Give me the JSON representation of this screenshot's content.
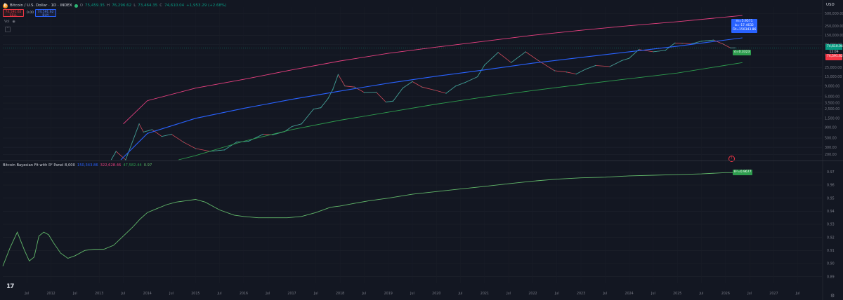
{
  "header": {
    "icon": "bitcoin-icon",
    "title": "Bitcoin / U.S. Dollar · 1D · INDEX",
    "o_label": "O",
    "o_value": "75,459.35",
    "h_label": "H",
    "h_value": "76,296.62",
    "l_label": "L",
    "l_value": "73,464.35",
    "c_label": "C",
    "c_value": "74,610.04",
    "change": "+1,953.29 (+2.68%)"
  },
  "trade": {
    "sell_price": "74,591.62",
    "sell_label": "SELL",
    "spread": "0.00",
    "buy_price": "74,591.62",
    "buy_label": "BUY"
  },
  "vol_label": "Vol",
  "vol_icon": "eye-icon",
  "currency": "USD",
  "indicator": {
    "name": "Bitcoin Bayesian Fit with R² Panel 8,000",
    "v1": "150,343.86",
    "v2": "322,628.46",
    "v3": "47,582.44",
    "v4": "0.97",
    "colors": {
      "upper": "#e84080",
      "fit": "#2962ff",
      "lower": "#2e9d4e",
      "r2": "#62b86a"
    }
  },
  "tags": {
    "fit_line1": "m=5.9571",
    "fit_line2": "b=-17.4632",
    "fit_line3": "Fit=150343.86",
    "lower": "σ=0.3323",
    "r2": "R²=0.9677",
    "price": "74,610.04",
    "countdown": "12:09",
    "price_red": "74,591.62"
  },
  "chart_data": [
    {
      "type": "line",
      "title": "Bitcoin / U.S. Dollar · 1D · INDEX",
      "log_scale": true,
      "ylim": [
        150,
        720000
      ],
      "xlim": [
        2011.0,
        2028.0
      ],
      "y_ticks": [
        {
          "v": 500000,
          "label": "500,000.00"
        },
        {
          "v": 250000,
          "label": "250,000.00"
        },
        {
          "v": 150000,
          "label": "150,000.00"
        },
        {
          "v": 90000,
          "label": "90,000.00"
        },
        {
          "v": 50000,
          "label": "50,000.00"
        },
        {
          "v": 25000,
          "label": "25,000.00"
        },
        {
          "v": 15000,
          "label": "15,000.00"
        },
        {
          "v": 9000,
          "label": "9,000.00"
        },
        {
          "v": 5000,
          "label": "5,000.00"
        },
        {
          "v": 3500,
          "label": "3,500.00"
        },
        {
          "v": 2500,
          "label": "2,500.00"
        },
        {
          "v": 1500,
          "label": "1,500.00"
        },
        {
          "v": 900,
          "label": "900.00"
        },
        {
          "v": 500,
          "label": "500.00"
        },
        {
          "v": 300,
          "label": "300.00"
        },
        {
          "v": 200,
          "label": "200.00"
        }
      ],
      "series": [
        {
          "key": "price",
          "x": [
            2013.25,
            2013.35,
            2013.55,
            2013.83,
            2013.92,
            2014.1,
            2014.3,
            2014.5,
            2014.75,
            2015.0,
            2015.3,
            2015.6,
            2015.85,
            2016.1,
            2016.4,
            2016.6,
            2016.85,
            2017.0,
            2017.2,
            2017.45,
            2017.6,
            2017.75,
            2017.85,
            2017.96,
            2018.1,
            2018.3,
            2018.5,
            2018.75,
            2018.95,
            2019.1,
            2019.3,
            2019.5,
            2019.7,
            2019.95,
            2020.2,
            2020.4,
            2020.6,
            2020.85,
            2021.0,
            2021.28,
            2021.55,
            2021.85,
            2022.1,
            2022.45,
            2022.7,
            2022.9,
            2023.1,
            2023.3,
            2023.6,
            2023.85,
            2024.0,
            2024.2,
            2024.5,
            2024.75,
            2024.95,
            2025.1,
            2025.3,
            2025.5,
            2025.75,
            2025.95,
            2026.1,
            2026.2
          ],
          "y": [
            150,
            240,
            110,
            1100,
            700,
            800,
            550,
            620,
            400,
            280,
            240,
            260,
            400,
            420,
            620,
            600,
            720,
            950,
            1100,
            2500,
            2700,
            4500,
            7500,
            17000,
            9000,
            8500,
            6300,
            6400,
            3700,
            3900,
            8000,
            11500,
            8500,
            7200,
            6000,
            9000,
            11000,
            15000,
            29000,
            58000,
            33000,
            60000,
            38000,
            21000,
            19500,
            17500,
            23000,
            28000,
            26500,
            37000,
            42000,
            68000,
            60000,
            65000,
            98000,
            96000,
            94000,
            108000,
            115000,
            92000,
            74500,
            74600
          ]
        },
        {
          "key": "upper",
          "x": [
            2013.5,
            2014,
            2015,
            2016,
            2017,
            2018,
            2019,
            2020,
            2021,
            2022,
            2023,
            2024,
            2025,
            2026.35
          ],
          "y": [
            1100,
            4000,
            8000,
            13000,
            22000,
            36000,
            55000,
            78000,
            108000,
            150000,
            198000,
            255000,
            320000,
            450000
          ]
        },
        {
          "key": "fit",
          "x": [
            2013.45,
            2014,
            2015,
            2016,
            2017,
            2018,
            2019,
            2020,
            2021,
            2022,
            2023,
            2024,
            2025,
            2026.35
          ],
          "y": [
            150,
            650,
            1500,
            2600,
            4300,
            6800,
            10500,
            15500,
            22000,
            32000,
            44000,
            60000,
            82000,
            130000
          ]
        },
        {
          "key": "lower",
          "x": [
            2014.65,
            2015,
            2016,
            2017,
            2018,
            2019,
            2020,
            2021,
            2022,
            2023,
            2024,
            2025,
            2026.35
          ],
          "y": [
            150,
            190,
            420,
            800,
            1350,
            2100,
            3300,
            4900,
            7000,
            9800,
            13500,
            18500,
            33000
          ]
        }
      ]
    },
    {
      "type": "line",
      "title": "Bitcoin Bayesian Fit with R² Panel 8,000",
      "ylim": [
        0.885,
        0.975
      ],
      "y_ticks": [
        {
          "v": 0.97,
          "label": "0.97"
        },
        {
          "v": 0.96,
          "label": "0.96"
        },
        {
          "v": 0.95,
          "label": "0.95"
        },
        {
          "v": 0.94,
          "label": "0.94"
        },
        {
          "v": 0.93,
          "label": "0.93"
        },
        {
          "v": 0.92,
          "label": "0.92"
        },
        {
          "v": 0.91,
          "label": "0.91"
        },
        {
          "v": 0.9,
          "label": "0.90"
        },
        {
          "v": 0.89,
          "label": "0.89"
        }
      ],
      "series": [
        {
          "key": "r2",
          "x": [
            2011.0,
            2011.15,
            2011.3,
            2011.45,
            2011.55,
            2011.65,
            2011.75,
            2011.85,
            2011.95,
            2012.05,
            2012.2,
            2012.35,
            2012.5,
            2012.7,
            2012.9,
            2013.1,
            2013.3,
            2013.5,
            2013.7,
            2013.85,
            2014.0,
            2014.2,
            2014.4,
            2014.6,
            2014.8,
            2015.0,
            2015.2,
            2015.5,
            2015.8,
            2016.0,
            2016.3,
            2016.6,
            2016.9,
            2017.2,
            2017.5,
            2017.8,
            2018.0,
            2018.3,
            2018.6,
            2019.0,
            2019.5,
            2020.0,
            2020.5,
            2021.0,
            2021.5,
            2022.0,
            2022.5,
            2023.0,
            2023.5,
            2024.0,
            2024.5,
            2025.0,
            2025.5,
            2026.0,
            2026.35
          ],
          "y": [
            0.898,
            0.912,
            0.924,
            0.91,
            0.902,
            0.905,
            0.921,
            0.924,
            0.922,
            0.916,
            0.908,
            0.904,
            0.906,
            0.91,
            0.911,
            0.911,
            0.914,
            0.921,
            0.928,
            0.934,
            0.939,
            0.942,
            0.945,
            0.947,
            0.948,
            0.949,
            0.947,
            0.941,
            0.937,
            0.936,
            0.935,
            0.935,
            0.935,
            0.936,
            0.939,
            0.943,
            0.944,
            0.946,
            0.948,
            0.95,
            0.953,
            0.955,
            0.957,
            0.959,
            0.961,
            0.963,
            0.9645,
            0.9655,
            0.966,
            0.967,
            0.9675,
            0.968,
            0.9685,
            0.9695,
            0.9695
          ]
        }
      ]
    }
  ],
  "x_ticks": [
    {
      "v": 2011.5,
      "label": "Jul"
    },
    {
      "v": 2012.0,
      "label": "2012"
    },
    {
      "v": 2012.5,
      "label": "Jul"
    },
    {
      "v": 2013.0,
      "label": "2013"
    },
    {
      "v": 2013.5,
      "label": "Jul"
    },
    {
      "v": 2014.0,
      "label": "2014"
    },
    {
      "v": 2014.5,
      "label": "Jul"
    },
    {
      "v": 2015.0,
      "label": "2015"
    },
    {
      "v": 2015.5,
      "label": "Jul"
    },
    {
      "v": 2016.0,
      "label": "2016"
    },
    {
      "v": 2016.5,
      "label": "Jul"
    },
    {
      "v": 2017.0,
      "label": "2017"
    },
    {
      "v": 2017.5,
      "label": "Jul"
    },
    {
      "v": 2018.0,
      "label": "2018"
    },
    {
      "v": 2018.5,
      "label": "Jul"
    },
    {
      "v": 2019.0,
      "label": "2019"
    },
    {
      "v": 2019.5,
      "label": "Jul"
    },
    {
      "v": 2020.0,
      "label": "2020"
    },
    {
      "v": 2020.5,
      "label": "Jul"
    },
    {
      "v": 2021.0,
      "label": "2021"
    },
    {
      "v": 2021.5,
      "label": "Jul"
    },
    {
      "v": 2022.0,
      "label": "2022"
    },
    {
      "v": 2022.5,
      "label": "Jul"
    },
    {
      "v": 2023.0,
      "label": "2023"
    },
    {
      "v": 2023.5,
      "label": "Jul"
    },
    {
      "v": 2024.0,
      "label": "2024"
    },
    {
      "v": 2024.5,
      "label": "Jul"
    },
    {
      "v": 2025.0,
      "label": "2025"
    },
    {
      "v": 2025.5,
      "label": "Jul"
    },
    {
      "v": 2026.0,
      "label": "2026"
    },
    {
      "v": 2026.5,
      "label": "Jul"
    },
    {
      "v": 2027.0,
      "label": "2027"
    },
    {
      "v": 2027.5,
      "label": "Jul"
    }
  ],
  "logo_icon": "tradingview-logo-icon",
  "settings_icon": "gear-icon"
}
